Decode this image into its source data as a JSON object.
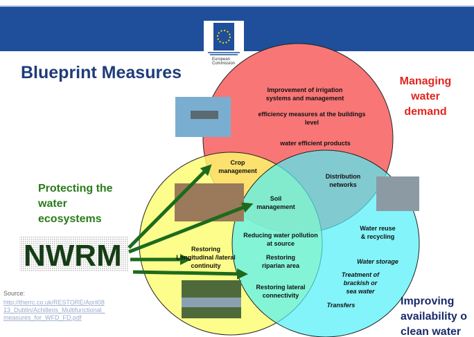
{
  "header": {
    "title": "Blueprint Measures",
    "logo_text": [
      "European",
      "Commission"
    ]
  },
  "regions": [
    {
      "label": [
        "Managing",
        "water",
        "demand"
      ]
    },
    {
      "label": [
        "Protecting the",
        "water",
        "ecosystems"
      ]
    },
    {
      "label": [
        "Improving",
        "availability o",
        "clean water"
      ]
    }
  ],
  "center_label": "NWRM",
  "measures": [
    {
      "label": [
        "Improvement of irrigation",
        "systems and management"
      ]
    },
    {
      "label": [
        "efficiency measures at the buildings",
        "level"
      ]
    },
    {
      "label": [
        "water efficient products"
      ]
    },
    {
      "label": [
        "Crop",
        "management"
      ]
    },
    {
      "label": [
        "Distribution",
        "networks"
      ]
    },
    {
      "label": [
        "Soil",
        "management"
      ]
    },
    {
      "label": [
        "Reducing water pollution",
        "at source"
      ]
    },
    {
      "label": [
        "Restoring",
        "riparian area"
      ]
    },
    {
      "label": [
        "Restoring",
        "Longitudinal /lateral",
        "continuity"
      ]
    },
    {
      "label": [
        "Water reuse",
        "& recycling"
      ]
    },
    {
      "label": [
        "Water storage"
      ]
    },
    {
      "label": [
        "Treatment of",
        "brackish or",
        "sea water"
      ]
    },
    {
      "label": [
        "Restoring lateral",
        "connectivity"
      ]
    },
    {
      "label": [
        "Transfers"
      ]
    }
  ],
  "source": {
    "label": "Source:",
    "link": [
      "http://therrc.co.uk/RESTORE/April08",
      "13_Dublin/Achilleos_Multifunctional_",
      "measures_for_WFD_FD.pdf"
    ]
  }
}
